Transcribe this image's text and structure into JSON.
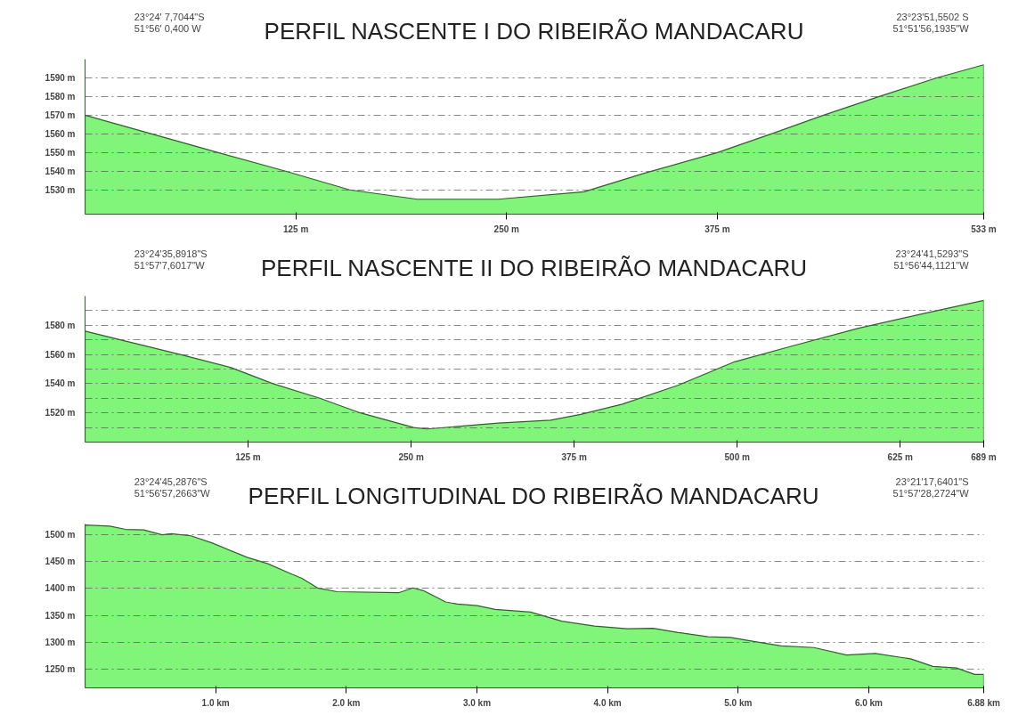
{
  "chart_data": [
    {
      "type": "area",
      "title": "PERFIL NASCENTE I DO RIBEIRÃO MANDACARU",
      "annotations": [
        "23°24' 7,7044\"S",
        "51°56' 0,400 W",
        "23°23'51,5502 S",
        "51°51'56,1935\"W"
      ],
      "x": [
        0,
        79,
        119,
        157,
        197,
        245,
        296,
        332,
        375,
        407,
        438,
        471,
        505,
        533
      ],
      "series": [
        {
          "color": "#80f57a",
          "values": [
            1570,
            1550,
            1540,
            1530,
            1525,
            1525,
            1529,
            1539,
            1550,
            1560,
            1570,
            1580,
            1590,
            1597
          ]
        }
      ],
      "xlim": [
        0,
        533
      ],
      "ylim": [
        1517,
        1600
      ],
      "xticks": [
        {
          "value": 125,
          "label": "125 m"
        },
        {
          "value": 250,
          "label": "250 m"
        },
        {
          "value": 375,
          "label": "375 m"
        },
        {
          "value": 533,
          "label": "533 m"
        }
      ],
      "yticks": [
        {
          "value": 1530,
          "label": "1530 m"
        },
        {
          "value": 1540,
          "label": "1540 m"
        },
        {
          "value": 1550,
          "label": "1550 m"
        },
        {
          "value": 1560,
          "label": "1560 m"
        },
        {
          "value": 1570,
          "label": "1570 m"
        },
        {
          "value": 1580,
          "label": "1580 m"
        },
        {
          "value": 1590,
          "label": "1590 m"
        }
      ],
      "grid": "y"
    },
    {
      "type": "area",
      "title": "PERFIL NASCENTE II DO RIBEIRÃO MANDACARU",
      "annotations": [
        "23°24'35,8918\"S",
        "51°57'7,6017\"W",
        "23°24'41,5293\"S",
        "51°56'44,1121\"W"
      ],
      "x": [
        0,
        73,
        112,
        144,
        180,
        211,
        252,
        262,
        317,
        357,
        380,
        412,
        455,
        498,
        543,
        593,
        643,
        689
      ],
      "series": [
        {
          "color": "#80f57a",
          "values": [
            1576,
            1560,
            1551,
            1540,
            1530,
            1520,
            1510,
            1509,
            1513,
            1515,
            1519,
            1526,
            1539,
            1555,
            1566,
            1578,
            1588,
            1597
          ]
        }
      ],
      "xlim": [
        0,
        689
      ],
      "ylim": [
        1500,
        1600
      ],
      "xticks": [
        {
          "value": 125,
          "label": "125 m"
        },
        {
          "value": 250,
          "label": "250 m"
        },
        {
          "value": 375,
          "label": "375 m"
        },
        {
          "value": 500,
          "label": "500 m"
        },
        {
          "value": 625,
          "label": "625 m"
        },
        {
          "value": 689,
          "label": "689 m"
        }
      ],
      "yticks": [
        {
          "value": 1510,
          "label": null
        },
        {
          "value": 1520,
          "label": "1520 m"
        },
        {
          "value": 1530,
          "label": null
        },
        {
          "value": 1540,
          "label": "1540 m"
        },
        {
          "value": 1550,
          "label": null
        },
        {
          "value": 1560,
          "label": "1560 m"
        },
        {
          "value": 1570,
          "label": null
        },
        {
          "value": 1580,
          "label": "1580 m"
        },
        {
          "value": 1590,
          "label": null
        }
      ],
      "grid": "y"
    },
    {
      "type": "area",
      "title": "PERFIL LONGITUDINAL DO RIBEIRÃO MANDACARU",
      "annotations": [
        "23°24'45,2876\"S",
        "51°56'57,2663\"W",
        "23°21'17,6401\"S",
        "51°57'28,2724\"W"
      ],
      "x": [
        0,
        0.19,
        0.31,
        0.45,
        0.59,
        0.66,
        0.81,
        0.97,
        1.24,
        1.4,
        1.57,
        1.66,
        1.78,
        1.93,
        2.4,
        2.51,
        2.59,
        2.76,
        2.85,
        3.0,
        3.14,
        3.41,
        3.65,
        3.9,
        4.15,
        4.35,
        4.54,
        4.77,
        4.94,
        5.13,
        5.33,
        5.58,
        5.83,
        6.05,
        6.32,
        6.49,
        6.67,
        6.81,
        6.88
      ],
      "series": [
        {
          "color": "#80f57a",
          "values": [
            1518,
            1516,
            1510,
            1509,
            1500,
            1502,
            1498,
            1485,
            1458,
            1446,
            1428,
            1419,
            1401,
            1394,
            1392,
            1401,
            1396,
            1375,
            1371,
            1368,
            1361,
            1356,
            1339,
            1330,
            1325,
            1326,
            1318,
            1310,
            1309,
            1301,
            1293,
            1290,
            1276,
            1279,
            1269,
            1255,
            1252,
            1240,
            1240
          ]
        }
      ],
      "xlim": [
        0,
        6.88
      ],
      "ylim": [
        1215,
        1520
      ],
      "xticks": [
        {
          "value": 1,
          "label": "1.0 km"
        },
        {
          "value": 2,
          "label": "2.0 km"
        },
        {
          "value": 3,
          "label": "3.0 km"
        },
        {
          "value": 4,
          "label": "4.0 km"
        },
        {
          "value": 5,
          "label": "5.0 km"
        },
        {
          "value": 6,
          "label": "6.0 km"
        },
        {
          "value": 6.88,
          "label": "6.88 km"
        }
      ],
      "yticks": [
        {
          "value": 1250,
          "label": "1250 m"
        },
        {
          "value": 1300,
          "label": "1300 m"
        },
        {
          "value": 1350,
          "label": "1350 m"
        },
        {
          "value": 1400,
          "label": "1400 m"
        },
        {
          "value": 1450,
          "label": "1450 m"
        },
        {
          "value": 1500,
          "label": "1500 m"
        }
      ],
      "grid": "y"
    }
  ]
}
